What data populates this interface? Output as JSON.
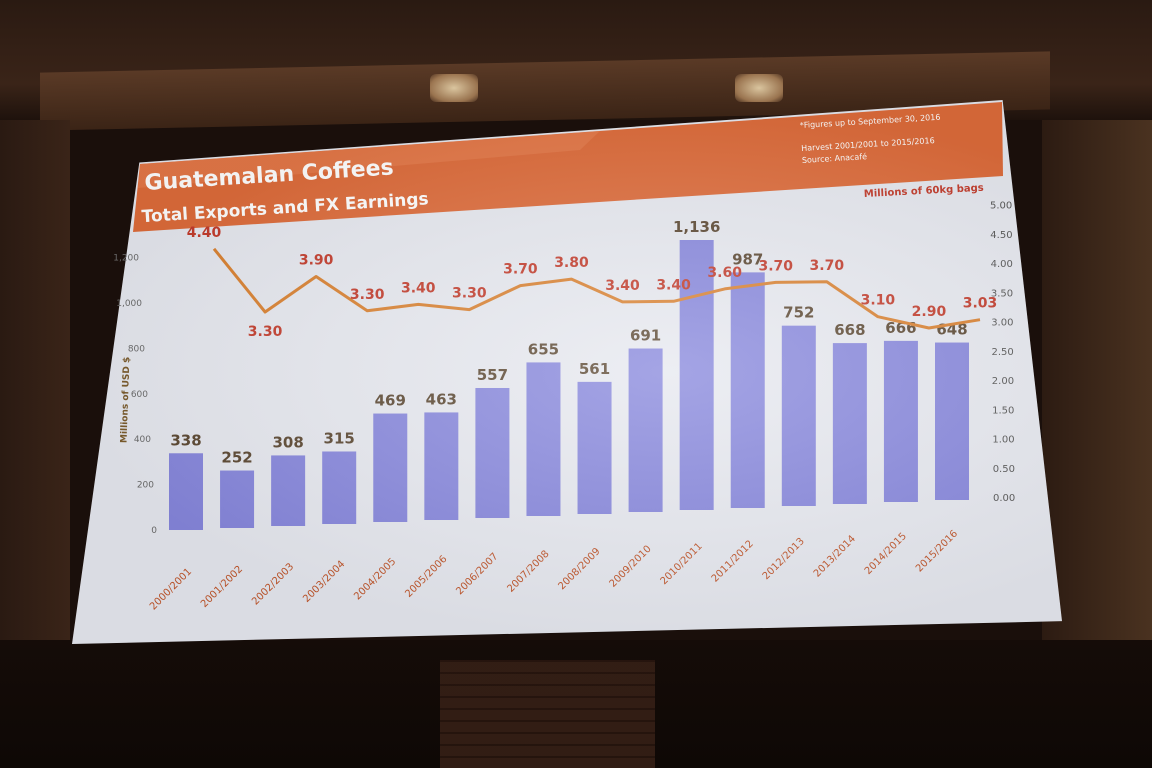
{
  "slide": {
    "title": "Guatemalan Coffees",
    "subtitle": "Total Exports and FX Earnings",
    "note_1": "*Figures up to September 30, 2016",
    "note_2": "Harvest 2001/2001 to 2015/2016",
    "note_3": "Source: Anacafé"
  },
  "colors": {
    "header": "#dd6b3a",
    "bar": "#8686dc",
    "line": "#d9802f",
    "line_label": "#c23a2a",
    "bar_label": "#5a4630"
  },
  "chart_data": {
    "type": "bar",
    "categories": [
      "2000/2001",
      "2001/2002",
      "2002/2003",
      "2003/2004",
      "2004/2005",
      "2005/2006",
      "2006/2007",
      "2007/2008",
      "2008/2009",
      "2009/2010",
      "2010/2011",
      "2011/2012",
      "2012/2013",
      "2013/2014",
      "2014/2015",
      "2015/2016"
    ],
    "series": [
      {
        "type": "bar",
        "axis": "left",
        "values": [
          338,
          252,
          308,
          315,
          469,
          463,
          557,
          655,
          561,
          691,
          1136,
          987,
          752,
          668,
          666,
          648
        ]
      },
      {
        "type": "line",
        "axis": "right",
        "values": [
          4.4,
          3.3,
          3.9,
          3.3,
          3.4,
          3.3,
          3.7,
          3.8,
          3.4,
          3.4,
          3.6,
          3.7,
          3.7,
          3.1,
          2.9,
          3.03
        ],
        "labels": [
          "4.40",
          "3.30",
          "3.90",
          "3.30",
          "3.40",
          "3.30",
          "3.70",
          "3.80",
          "3.40",
          "3.40",
          "3.60",
          "3.70",
          "3.70",
          "3.10",
          "2.90",
          "3.03"
        ]
      }
    ],
    "bar_labels": [
      "338",
      "252",
      "308",
      "315",
      "469",
      "463",
      "557",
      "655",
      "561",
      "691",
      "1,136",
      "987",
      "752",
      "668",
      "666",
      "648"
    ],
    "ylabel": "Millions of USD $",
    "ylabel_right": "Millions of 60kg bags",
    "ylim": [
      0,
      1200
    ],
    "ylim_right": [
      0,
      5
    ],
    "left_ticks": [
      "0",
      "200",
      "400",
      "600",
      "800",
      "1,000",
      "1,200"
    ],
    "right_ticks": [
      "0.00",
      "0.50",
      "1.00",
      "1.50",
      "2.00",
      "2.50",
      "3.00",
      "3.50",
      "4.00",
      "4.50",
      "5.00"
    ],
    "grid": false
  }
}
